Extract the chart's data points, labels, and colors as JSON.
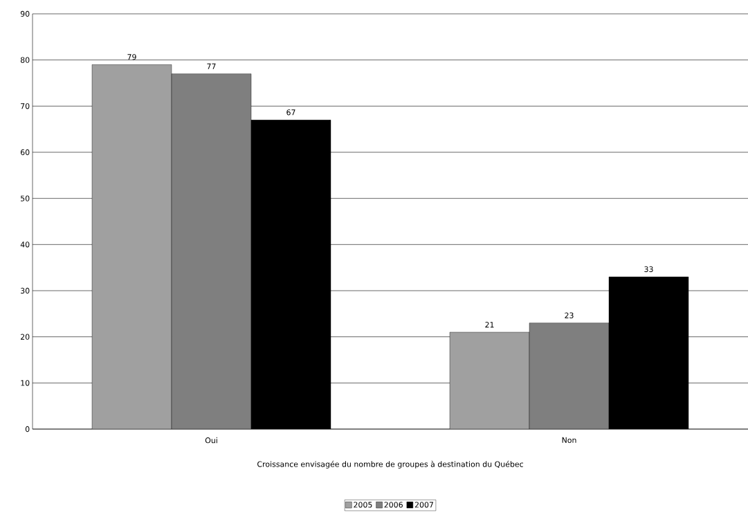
{
  "chart_data": {
    "type": "bar",
    "xlabel": "Croissance envisagée du nombre de groupes à destination du Québec",
    "categories": [
      "Oui",
      "Non"
    ],
    "series": [
      {
        "name": "2005",
        "color": "#a0a0a0",
        "values": [
          79,
          21
        ]
      },
      {
        "name": "2006",
        "color": "#7f7f7f",
        "values": [
          77,
          23
        ]
      },
      {
        "name": "2007",
        "color": "#000000",
        "values": [
          67,
          33
        ]
      }
    ],
    "ylim": [
      0,
      90
    ],
    "yticks": [
      0,
      10,
      20,
      30,
      40,
      50,
      60,
      70,
      80,
      90
    ],
    "grid": "y",
    "legend": "bottom",
    "data_labels": true
  }
}
